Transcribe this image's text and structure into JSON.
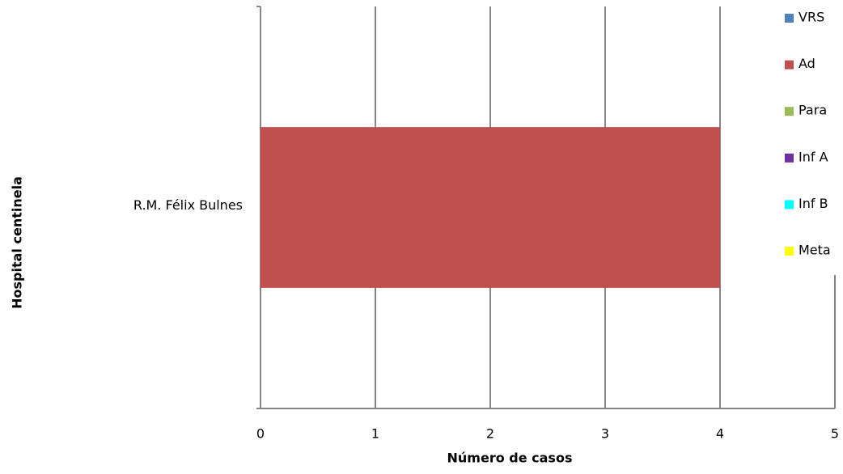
{
  "chart_data": {
    "type": "bar",
    "orientation": "horizontal",
    "stacked": true,
    "x_label": "Número de casos",
    "y_label": "Hospital centinela",
    "categories": [
      "R.M. Félix Bulnes"
    ],
    "series": [
      {
        "name": "VRS",
        "color": "#4f81bd",
        "values": [
          0
        ]
      },
      {
        "name": "Ad",
        "color": "#c0504d",
        "values": [
          4
        ]
      },
      {
        "name": "Para",
        "color": "#9bbb59",
        "values": [
          0
        ]
      },
      {
        "name": "Inf A",
        "color": "#7030a0",
        "values": [
          0
        ]
      },
      {
        "name": "Inf B",
        "color": "#00ffff",
        "values": [
          0
        ]
      },
      {
        "name": "Meta",
        "color": "#ffff00",
        "values": [
          0
        ]
      }
    ],
    "xlim": [
      0,
      5
    ],
    "xticks": [
      0,
      1,
      2,
      3,
      4,
      5
    ],
    "grid": true,
    "legend": "right"
  }
}
